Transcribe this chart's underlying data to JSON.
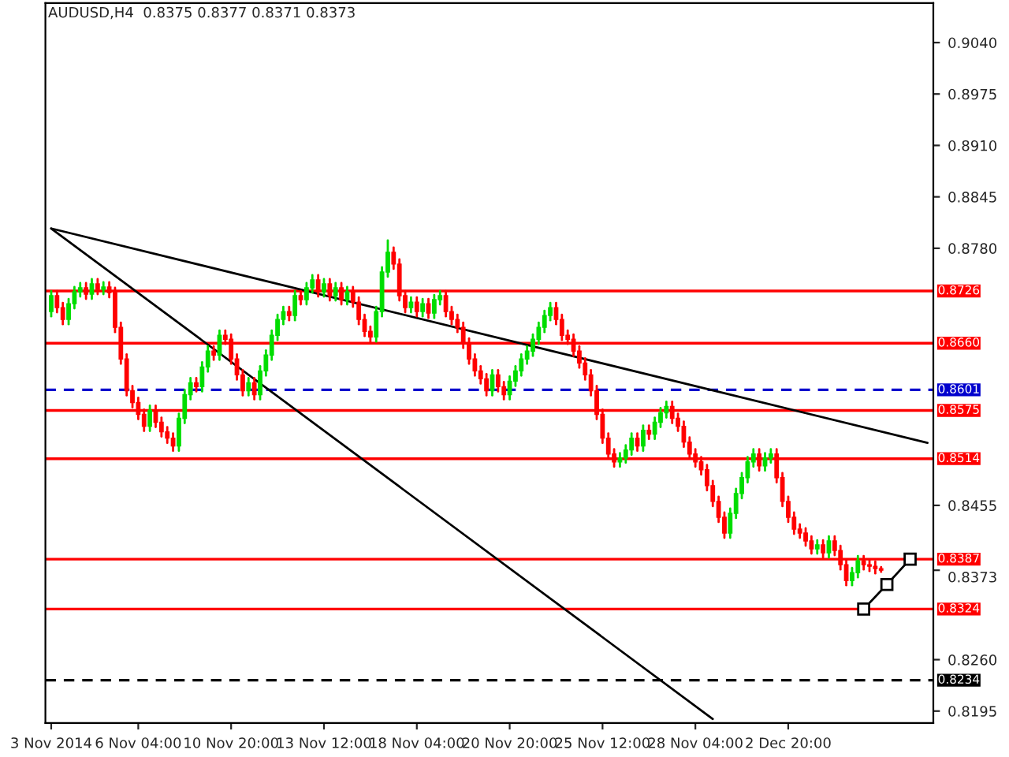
{
  "chart_data": {
    "type": "candlestick",
    "title": "AUDUSD,H4  0.8375 0.8377 0.8371 0.8373",
    "categories": [
      "3 Nov 2014",
      null,
      null,
      null,
      null,
      null,
      null,
      null,
      null,
      null,
      null,
      null,
      null,
      null,
      null,
      "6 Nov 04:00",
      null,
      null,
      null,
      null,
      null,
      null,
      null,
      null,
      null,
      null,
      null,
      null,
      null,
      null,
      null,
      "10 Nov 20:00",
      null,
      null,
      null,
      null,
      null,
      null,
      null,
      null,
      null,
      null,
      null,
      null,
      null,
      null,
      null,
      "13 Nov 12:00",
      null,
      null,
      null,
      null,
      null,
      null,
      null,
      null,
      null,
      null,
      null,
      null,
      null,
      null,
      null,
      "18 Nov 04:00",
      null,
      null,
      null,
      null,
      null,
      null,
      null,
      null,
      null,
      null,
      null,
      null,
      null,
      null,
      null,
      "20 Nov 20:00",
      null,
      null,
      null,
      null,
      null,
      null,
      null,
      null,
      null,
      null,
      null,
      null,
      null,
      null,
      null,
      "25 Nov 12:00",
      null,
      null,
      null,
      null,
      null,
      null,
      null,
      null,
      null,
      null,
      null,
      null,
      null,
      null,
      null,
      "28 Nov 04:00",
      null,
      null,
      null,
      null,
      null,
      null,
      null,
      null,
      null,
      null,
      null,
      null,
      null,
      null,
      null,
      "2 Dec 20:00",
      null,
      null,
      null,
      null,
      null,
      null,
      null,
      null,
      null,
      null,
      null,
      null,
      null,
      null,
      null,
      null,
      null,
      null,
      null,
      null,
      null,
      null,
      null,
      null
    ],
    "ohlc": [
      [
        0.87,
        0.8726,
        0.8694,
        0.872
      ],
      [
        0.872,
        0.8726,
        0.8699,
        0.8705
      ],
      [
        0.8705,
        0.8711,
        0.8684,
        0.869
      ],
      [
        0.869,
        0.8716,
        0.8684,
        0.871
      ],
      [
        0.871,
        0.8731,
        0.8704,
        0.8725
      ],
      [
        0.8725,
        0.8736,
        0.8719,
        0.873
      ],
      [
        0.873,
        0.8736,
        0.8716,
        0.8722
      ],
      [
        0.8722,
        0.8741,
        0.8716,
        0.8735
      ],
      [
        0.8735,
        0.8741,
        0.8722,
        0.8728
      ],
      [
        0.8728,
        0.8737,
        0.8722,
        0.8731
      ],
      [
        0.8731,
        0.8737,
        0.8718,
        0.8724
      ],
      [
        0.8724,
        0.873,
        0.8674,
        0.868
      ],
      [
        0.868,
        0.8686,
        0.8634,
        0.864
      ],
      [
        0.864,
        0.8646,
        0.8594,
        0.86
      ],
      [
        0.86,
        0.8606,
        0.8579,
        0.8585
      ],
      [
        0.8585,
        0.8591,
        0.8564,
        0.857
      ],
      [
        0.857,
        0.8576,
        0.8549,
        0.8555
      ],
      [
        0.8555,
        0.8581,
        0.8549,
        0.8575
      ],
      [
        0.8575,
        0.8581,
        0.8554,
        0.856
      ],
      [
        0.856,
        0.8566,
        0.8542,
        0.8548
      ],
      [
        0.8548,
        0.8554,
        0.8534,
        0.854
      ],
      [
        0.854,
        0.8546,
        0.8524,
        0.853
      ],
      [
        0.853,
        0.8571,
        0.8524,
        0.8565
      ],
      [
        0.8565,
        0.8601,
        0.8559,
        0.8595
      ],
      [
        0.8595,
        0.8616,
        0.8589,
        0.861
      ],
      [
        0.861,
        0.8616,
        0.8599,
        0.8605
      ],
      [
        0.8605,
        0.8636,
        0.8599,
        0.863
      ],
      [
        0.863,
        0.8656,
        0.8624,
        0.865
      ],
      [
        0.865,
        0.8656,
        0.8639,
        0.8645
      ],
      [
        0.8645,
        0.8676,
        0.8639,
        0.867
      ],
      [
        0.867,
        0.8676,
        0.8659,
        0.8665
      ],
      [
        0.8665,
        0.8671,
        0.8634,
        0.864
      ],
      [
        0.864,
        0.8646,
        0.8614,
        0.862
      ],
      [
        0.862,
        0.8626,
        0.8594,
        0.86
      ],
      [
        0.86,
        0.8616,
        0.8594,
        0.861
      ],
      [
        0.861,
        0.8616,
        0.8589,
        0.8595
      ],
      [
        0.8595,
        0.8631,
        0.8589,
        0.8625
      ],
      [
        0.8625,
        0.8651,
        0.8619,
        0.8645
      ],
      [
        0.8645,
        0.8676,
        0.8639,
        0.867
      ],
      [
        0.867,
        0.8696,
        0.8664,
        0.869
      ],
      [
        0.869,
        0.8706,
        0.8684,
        0.87
      ],
      [
        0.87,
        0.8706,
        0.8689,
        0.8695
      ],
      [
        0.8695,
        0.8726,
        0.8689,
        0.872
      ],
      [
        0.872,
        0.8726,
        0.8709,
        0.8715
      ],
      [
        0.8715,
        0.8736,
        0.8709,
        0.873
      ],
      [
        0.873,
        0.8746,
        0.8724,
        0.874
      ],
      [
        0.874,
        0.8746,
        0.8719,
        0.8725
      ],
      [
        0.8725,
        0.8741,
        0.8719,
        0.8735
      ],
      [
        0.8735,
        0.8741,
        0.8714,
        0.872
      ],
      [
        0.872,
        0.8736,
        0.8714,
        0.873
      ],
      [
        0.873,
        0.8736,
        0.8709,
        0.8715
      ],
      [
        0.8715,
        0.8731,
        0.8709,
        0.8725
      ],
      [
        0.8725,
        0.8731,
        0.8706,
        0.8712
      ],
      [
        0.8712,
        0.8718,
        0.8684,
        0.869
      ],
      [
        0.869,
        0.8696,
        0.8669,
        0.8675
      ],
      [
        0.8675,
        0.8681,
        0.8662,
        0.8668
      ],
      [
        0.8668,
        0.8706,
        0.8662,
        0.87
      ],
      [
        0.87,
        0.8756,
        0.8694,
        0.875
      ],
      [
        0.875,
        0.879,
        0.8744,
        0.8775
      ],
      [
        0.8775,
        0.8781,
        0.8754,
        0.876
      ],
      [
        0.876,
        0.8766,
        0.8714,
        0.872
      ],
      [
        0.872,
        0.8726,
        0.8699,
        0.8705
      ],
      [
        0.8705,
        0.8718,
        0.8699,
        0.8712
      ],
      [
        0.8712,
        0.8718,
        0.8694,
        0.87
      ],
      [
        0.87,
        0.8716,
        0.8694,
        0.871
      ],
      [
        0.871,
        0.8716,
        0.8692,
        0.8698
      ],
      [
        0.8698,
        0.8721,
        0.8692,
        0.8715
      ],
      [
        0.8715,
        0.8726,
        0.8709,
        0.872
      ],
      [
        0.872,
        0.8726,
        0.8694,
        0.87
      ],
      [
        0.87,
        0.8706,
        0.8684,
        0.869
      ],
      [
        0.869,
        0.8696,
        0.8674,
        0.868
      ],
      [
        0.868,
        0.8686,
        0.8654,
        0.866
      ],
      [
        0.866,
        0.8666,
        0.8634,
        0.864
      ],
      [
        0.864,
        0.8646,
        0.8619,
        0.8625
      ],
      [
        0.8625,
        0.8631,
        0.8609,
        0.8615
      ],
      [
        0.8615,
        0.8621,
        0.8594,
        0.86
      ],
      [
        0.86,
        0.8626,
        0.8594,
        0.862
      ],
      [
        0.862,
        0.8626,
        0.8599,
        0.8605
      ],
      [
        0.8605,
        0.8611,
        0.8589,
        0.8595
      ],
      [
        0.8595,
        0.8618,
        0.8589,
        0.8612
      ],
      [
        0.8612,
        0.8631,
        0.8606,
        0.8625
      ],
      [
        0.8625,
        0.8646,
        0.8619,
        0.864
      ],
      [
        0.864,
        0.8656,
        0.8634,
        0.865
      ],
      [
        0.865,
        0.8671,
        0.8644,
        0.8665
      ],
      [
        0.8665,
        0.8686,
        0.8659,
        0.868
      ],
      [
        0.868,
        0.8701,
        0.8674,
        0.8695
      ],
      [
        0.8695,
        0.8711,
        0.8689,
        0.8705
      ],
      [
        0.8705,
        0.8711,
        0.8684,
        0.869
      ],
      [
        0.869,
        0.8696,
        0.8664,
        0.867
      ],
      [
        0.867,
        0.8676,
        0.8659,
        0.8665
      ],
      [
        0.8665,
        0.8671,
        0.8644,
        0.865
      ],
      [
        0.865,
        0.8656,
        0.8629,
        0.8635
      ],
      [
        0.8635,
        0.8641,
        0.8614,
        0.862
      ],
      [
        0.862,
        0.8626,
        0.8594,
        0.86
      ],
      [
        0.86,
        0.8606,
        0.8564,
        0.857
      ],
      [
        0.857,
        0.8576,
        0.8534,
        0.854
      ],
      [
        0.854,
        0.8546,
        0.8514,
        0.852
      ],
      [
        0.852,
        0.8526,
        0.8504,
        0.851
      ],
      [
        0.851,
        0.8521,
        0.8504,
        0.8515
      ],
      [
        0.8515,
        0.8531,
        0.8509,
        0.8525
      ],
      [
        0.8525,
        0.8546,
        0.8519,
        0.854
      ],
      [
        0.854,
        0.8546,
        0.8524,
        0.853
      ],
      [
        0.853,
        0.8556,
        0.8524,
        0.855
      ],
      [
        0.855,
        0.8556,
        0.8539,
        0.8545
      ],
      [
        0.8545,
        0.8566,
        0.8539,
        0.856
      ],
      [
        0.856,
        0.8578,
        0.8554,
        0.8572
      ],
      [
        0.8572,
        0.8586,
        0.8566,
        0.858
      ],
      [
        0.858,
        0.8586,
        0.8559,
        0.8565
      ],
      [
        0.8565,
        0.8571,
        0.8549,
        0.8555
      ],
      [
        0.8555,
        0.8561,
        0.8529,
        0.8535
      ],
      [
        0.8535,
        0.8541,
        0.8514,
        0.852
      ],
      [
        0.852,
        0.8526,
        0.8504,
        0.851
      ],
      [
        0.851,
        0.8516,
        0.8494,
        0.85
      ],
      [
        0.85,
        0.8506,
        0.8474,
        0.848
      ],
      [
        0.848,
        0.8486,
        0.8454,
        0.846
      ],
      [
        0.846,
        0.8466,
        0.8434,
        0.844
      ],
      [
        0.844,
        0.8446,
        0.8414,
        0.842
      ],
      [
        0.842,
        0.8451,
        0.8414,
        0.8445
      ],
      [
        0.8445,
        0.8476,
        0.8439,
        0.847
      ],
      [
        0.847,
        0.8496,
        0.8464,
        0.849
      ],
      [
        0.849,
        0.8516,
        0.8484,
        0.851
      ],
      [
        0.851,
        0.8526,
        0.8504,
        0.852
      ],
      [
        0.852,
        0.8526,
        0.8499,
        0.8505
      ],
      [
        0.8505,
        0.8521,
        0.8499,
        0.8515
      ],
      [
        0.8515,
        0.8526,
        0.8509,
        0.852
      ],
      [
        0.852,
        0.8526,
        0.8484,
        0.849
      ],
      [
        0.849,
        0.8496,
        0.8454,
        0.846
      ],
      [
        0.846,
        0.8466,
        0.8434,
        0.844
      ],
      [
        0.844,
        0.8446,
        0.8419,
        0.8425
      ],
      [
        0.8425,
        0.8431,
        0.8414,
        0.842
      ],
      [
        0.842,
        0.8426,
        0.8404,
        0.841
      ],
      [
        0.841,
        0.8416,
        0.8394,
        0.84
      ],
      [
        0.84,
        0.8411,
        0.8394,
        0.8405
      ],
      [
        0.8405,
        0.8411,
        0.8389,
        0.8395
      ],
      [
        0.8395,
        0.8416,
        0.8389,
        0.841
      ],
      [
        0.841,
        0.8416,
        0.8392,
        0.8398
      ],
      [
        0.8398,
        0.8404,
        0.8374,
        0.838
      ],
      [
        0.838,
        0.8386,
        0.8354,
        0.836
      ],
      [
        0.836,
        0.8376,
        0.8354,
        0.837
      ],
      [
        0.837,
        0.8391,
        0.8364,
        0.8385
      ],
      [
        0.8385,
        0.8391,
        0.8374,
        0.838
      ],
      [
        0.838,
        0.8386,
        0.8372,
        0.8378
      ],
      [
        0.8378,
        0.8384,
        0.8369,
        0.8375
      ],
      [
        0.8375,
        0.8377,
        0.8371,
        0.8373
      ],
      null,
      null,
      null,
      null,
      null,
      null,
      null,
      null
    ],
    "series": [
      {
        "type": "line",
        "color": "#000000",
        "values": [
          0.8805,
          null,
          null,
          null,
          null,
          null,
          null,
          null,
          null,
          null,
          null,
          null,
          null,
          null,
          null,
          null,
          null,
          null,
          null,
          null,
          null,
          null,
          null,
          null,
          null,
          null,
          null,
          null,
          null,
          null,
          null,
          null,
          null,
          null,
          null,
          null,
          null,
          null,
          null,
          null,
          null,
          null,
          null,
          null,
          null,
          null,
          null,
          null,
          null,
          null,
          null,
          null,
          null,
          null,
          null,
          null,
          null,
          null,
          null,
          null,
          null,
          null,
          null,
          null,
          null,
          null,
          null,
          null,
          null,
          null,
          null,
          null,
          null,
          null,
          null,
          null,
          null,
          null,
          null,
          null,
          null,
          null,
          null,
          null,
          null,
          null,
          null,
          null,
          null,
          null,
          null,
          null,
          null,
          null,
          null,
          null,
          null,
          null,
          null,
          null,
          null,
          null,
          null,
          null,
          null,
          null,
          null,
          null,
          null,
          null,
          null,
          null,
          null,
          null,
          null,
          null,
          null,
          null,
          null,
          null,
          null,
          null,
          null,
          null,
          null,
          null,
          null,
          null,
          null,
          null,
          null,
          null,
          null,
          null,
          null,
          null,
          null,
          null,
          null,
          null,
          null,
          null,
          null,
          null,
          null,
          null,
          null,
          null,
          null,
          null,
          null,
          0.8534
        ]
      },
      {
        "type": "line",
        "color": "#000000",
        "values": [
          0.8805,
          null,
          null,
          null,
          null,
          null,
          null,
          null,
          null,
          null,
          null,
          null,
          null,
          null,
          null,
          null,
          null,
          null,
          null,
          null,
          null,
          null,
          null,
          null,
          null,
          null,
          null,
          null,
          null,
          null,
          null,
          null,
          null,
          null,
          null,
          null,
          null,
          null,
          null,
          null,
          null,
          null,
          null,
          null,
          null,
          null,
          null,
          null,
          null,
          null,
          null,
          null,
          null,
          null,
          null,
          null,
          null,
          null,
          null,
          null,
          null,
          null,
          null,
          null,
          null,
          null,
          null,
          null,
          null,
          null,
          null,
          null,
          null,
          null,
          null,
          null,
          null,
          null,
          null,
          null,
          null,
          null,
          null,
          null,
          null,
          null,
          null,
          null,
          null,
          null,
          null,
          null,
          null,
          null,
          null,
          null,
          null,
          null,
          null,
          null,
          null,
          null,
          null,
          null,
          null,
          null,
          null,
          null,
          null,
          null,
          null,
          null,
          null,
          null,
          0.8185,
          null,
          null,
          null,
          null,
          null,
          null,
          null,
          null,
          null,
          null,
          null,
          null,
          null,
          null,
          null,
          null,
          null,
          null,
          null,
          null,
          null,
          null,
          null,
          null,
          null,
          null,
          null,
          null,
          null,
          null,
          null,
          null,
          null,
          null,
          null,
          null,
          null
        ]
      },
      {
        "type": "line",
        "color": "#000000",
        "marker": "square",
        "values": [
          null,
          null,
          null,
          null,
          null,
          null,
          null,
          null,
          null,
          null,
          null,
          null,
          null,
          null,
          null,
          null,
          null,
          null,
          null,
          null,
          null,
          null,
          null,
          null,
          null,
          null,
          null,
          null,
          null,
          null,
          null,
          null,
          null,
          null,
          null,
          null,
          null,
          null,
          null,
          null,
          null,
          null,
          null,
          null,
          null,
          null,
          null,
          null,
          null,
          null,
          null,
          null,
          null,
          null,
          null,
          null,
          null,
          null,
          null,
          null,
          null,
          null,
          null,
          null,
          null,
          null,
          null,
          null,
          null,
          null,
          null,
          null,
          null,
          null,
          null,
          null,
          null,
          null,
          null,
          null,
          null,
          null,
          null,
          null,
          null,
          null,
          null,
          null,
          null,
          null,
          null,
          null,
          null,
          null,
          null,
          null,
          null,
          null,
          null,
          null,
          null,
          null,
          null,
          null,
          null,
          null,
          null,
          null,
          null,
          null,
          null,
          null,
          null,
          null,
          null,
          null,
          null,
          null,
          null,
          null,
          null,
          null,
          null,
          null,
          null,
          null,
          null,
          null,
          null,
          null,
          null,
          null,
          null,
          null,
          null,
          null,
          null,
          null,
          null,
          null,
          0.8324,
          null,
          null,
          null,
          0.8355,
          null,
          null,
          null,
          0.8387,
          null,
          null,
          null
        ]
      }
    ],
    "ylim": [
      0.818,
      0.909
    ],
    "yticks": [
      {
        "value": 0.904,
        "label": "0.9040"
      },
      {
        "value": 0.8975,
        "label": "0.8975"
      },
      {
        "value": 0.891,
        "label": "0.8910"
      },
      {
        "value": 0.8845,
        "label": "0.8845"
      },
      {
        "value": 0.878,
        "label": "0.8780"
      },
      {
        "value": 0.8455,
        "label": "0.8455"
      },
      {
        "value": 0.8373,
        "label": "0.8373"
      },
      {
        "value": 0.826,
        "label": "0.8260"
      },
      {
        "value": 0.8195,
        "label": "0.8195"
      }
    ],
    "ref_lines": [
      {
        "axis": "y",
        "value": 0.8726,
        "label": "0.8726",
        "color": "#ff0000",
        "line_style": "solid"
      },
      {
        "axis": "y",
        "value": 0.866,
        "label": "0.8660",
        "color": "#ff0000",
        "line_style": "solid"
      },
      {
        "axis": "y",
        "value": 0.8601,
        "label": "0.8601",
        "color": "#0000cd",
        "line_style": "dashed"
      },
      {
        "axis": "y",
        "value": 0.8575,
        "label": "0.8575",
        "color": "#ff0000",
        "line_style": "solid"
      },
      {
        "axis": "y",
        "value": 0.8514,
        "label": "0.8514",
        "color": "#ff0000",
        "line_style": "solid"
      },
      {
        "axis": "y",
        "value": 0.8387,
        "label": "0.8387",
        "color": "#ff0000",
        "line_style": "solid"
      },
      {
        "axis": "y",
        "value": 0.8324,
        "label": "0.8324",
        "color": "#ff0000",
        "line_style": "solid"
      },
      {
        "axis": "y",
        "value": 0.8234,
        "label": "0.8234",
        "color": "#000000",
        "line_style": "dashed"
      }
    ],
    "grid": false,
    "legend": false
  }
}
